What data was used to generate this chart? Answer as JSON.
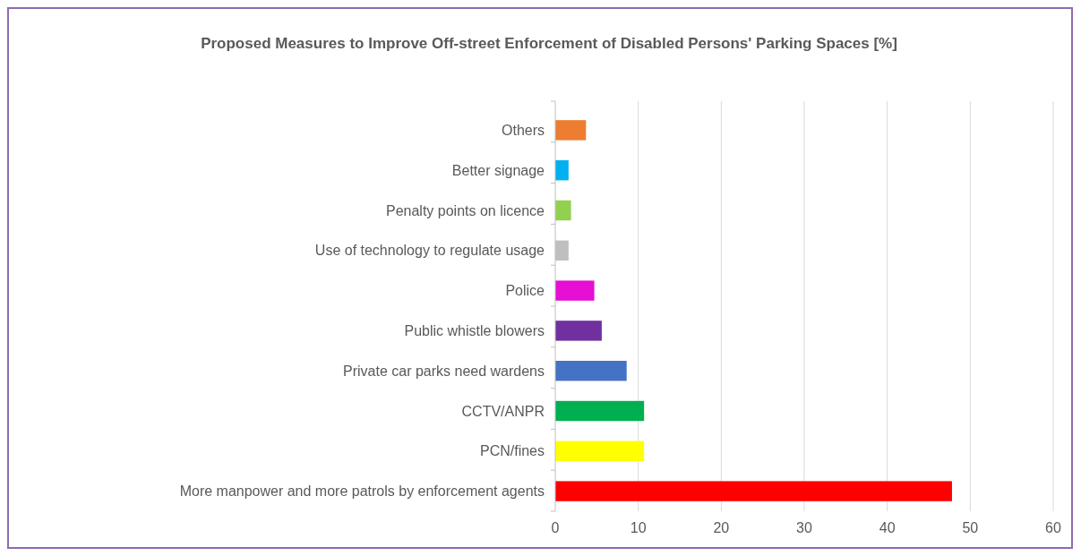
{
  "chart_data": {
    "type": "bar",
    "orientation": "horizontal",
    "title": "Proposed Measures to Improve Off-street Enforcement of Disabled Persons' Parking Spaces [%]",
    "categories": [
      "Others",
      "Better signage",
      "Penalty points on licence",
      "Use of technology to regulate usage",
      "Police",
      "Public whistle blowers",
      "Private car parks need wardens",
      "CCTV/ANPR",
      "PCN/fines",
      "More manpower and more patrols by enforcement agents"
    ],
    "values": [
      3.7,
      1.6,
      1.9,
      1.6,
      4.7,
      5.6,
      8.6,
      10.7,
      10.7,
      47.8
    ],
    "colors": [
      "#ed7d31",
      "#00b0f0",
      "#92d050",
      "#bfbfbf",
      "#e60fd3",
      "#7030a0",
      "#4472c4",
      "#00b050",
      "#ffff00",
      "#ff0000"
    ],
    "xlim": [
      0,
      60
    ],
    "xticks": [
      0,
      10,
      20,
      30,
      40,
      50,
      60
    ],
    "grid": "x"
  }
}
